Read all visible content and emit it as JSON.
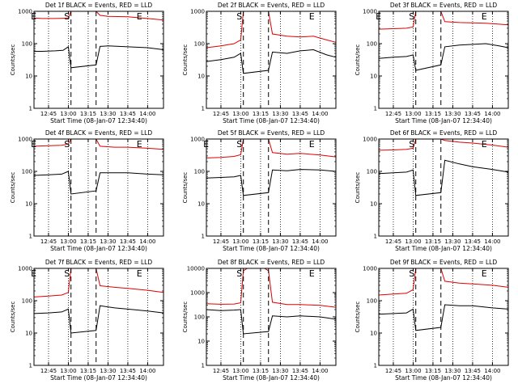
{
  "figure": {
    "xlabel": "Start Time (08-Jan-07 12:34:40)",
    "ylabel": "Counts/sec",
    "x_tick_labels": [
      "12:45",
      "13:00",
      "13:15",
      "13:30",
      "13:45",
      "14:00"
    ],
    "y_tick_labels": [
      "1",
      "10",
      "100",
      "1000"
    ],
    "y_tick_labels_det8": [
      "1",
      "10",
      "100",
      "1000",
      "10000"
    ],
    "series_colors": {
      "events": "#000000",
      "lld": "#e00000"
    },
    "markers": {
      "start": "S",
      "end": "E"
    }
  },
  "chart_data": [
    {
      "type": "line",
      "title": "Det 1f BLACK = Events, RED = LLD",
      "xlabel": "Start Time (08-Jan-07 12:34:40)",
      "ylabel": "Counts/sec",
      "y_scale": "log",
      "ylim": [
        1,
        1000
      ],
      "xlim": [
        "12:34",
        "14:12"
      ],
      "vlines_dotted": [
        "12:45",
        "13:00",
        "13:15",
        "13:30",
        "13:45",
        "14:00"
      ],
      "vlines_dashed": [
        "13:02",
        "13:21"
      ],
      "markers": [
        {
          "label": "E",
          "x": "12:35"
        },
        {
          "label": "S",
          "x": "13:02"
        },
        {
          "label": "E",
          "x": "13:55"
        }
      ],
      "series": [
        {
          "name": "Events",
          "color": "#000000",
          "x": [
            "12:34",
            "12:40",
            "12:50",
            "12:56",
            "13:00",
            "13:02",
            "13:21",
            "13:24",
            "13:30",
            "13:45",
            "14:00",
            "14:12"
          ],
          "y": [
            58,
            58,
            60,
            62,
            80,
            18,
            22,
            82,
            85,
            80,
            75,
            65
          ]
        },
        {
          "name": "LLD",
          "color": "#e00000",
          "x": [
            "12:34",
            "12:40",
            "12:50",
            "12:56",
            "13:00",
            "13:02",
            "13:05",
            "13:18",
            "13:21",
            "13:24",
            "13:30",
            "13:45",
            "14:00",
            "14:12"
          ],
          "y": [
            620,
            600,
            600,
            610,
            620,
            1000,
            1000,
            1000,
            1000,
            750,
            700,
            680,
            600,
            540
          ]
        }
      ]
    },
    {
      "type": "line",
      "title": "Det 2f BLACK = Events, RED = LLD",
      "xlabel": "Start Time (08-Jan-07 12:34:40)",
      "ylabel": "Counts/sec",
      "y_scale": "log",
      "ylim": [
        1,
        1000
      ],
      "xlim": [
        "12:34",
        "14:12"
      ],
      "vlines_dotted": [
        "12:45",
        "13:00",
        "13:15",
        "13:30",
        "13:45",
        "14:00"
      ],
      "vlines_dashed": [
        "13:02",
        "13:21"
      ],
      "markers": [
        {
          "label": "S",
          "x": "13:02"
        },
        {
          "label": "E",
          "x": "13:55"
        }
      ],
      "series": [
        {
          "name": "Events",
          "color": "#000000",
          "x": [
            "12:34",
            "12:45",
            "12:55",
            "13:00",
            "13:02",
            "13:21",
            "13:24",
            "13:35",
            "13:45",
            "13:55",
            "14:05",
            "14:12"
          ],
          "y": [
            28,
            32,
            38,
            50,
            12,
            15,
            55,
            50,
            60,
            65,
            45,
            38
          ]
        },
        {
          "name": "LLD",
          "color": "#e00000",
          "x": [
            "12:34",
            "12:45",
            "12:55",
            "13:00",
            "13:02",
            "13:05",
            "13:18",
            "13:21",
            "13:24",
            "13:35",
            "13:45",
            "13:55",
            "14:05",
            "14:12"
          ],
          "y": [
            75,
            85,
            100,
            130,
            1000,
            1000,
            1000,
            1000,
            200,
            170,
            160,
            170,
            130,
            110
          ]
        }
      ]
    },
    {
      "type": "line",
      "title": "Det 3f BLACK = Events, RED = LLD",
      "xlabel": "Start Time (08-Jan-07 12:34:40)",
      "ylabel": "Counts/sec",
      "y_scale": "log",
      "ylim": [
        1,
        1000
      ],
      "xlim": [
        "12:34",
        "14:12"
      ],
      "vlines_dotted": [
        "12:45",
        "13:00",
        "13:15",
        "13:30",
        "13:45",
        "14:00"
      ],
      "vlines_dashed": [
        "13:02",
        "13:21"
      ],
      "markers": [
        {
          "label": "E",
          "x": "12:35"
        },
        {
          "label": "S",
          "x": "13:02"
        },
        {
          "label": "E",
          "x": "13:55"
        }
      ],
      "series": [
        {
          "name": "Events",
          "color": "#000000",
          "x": [
            "12:34",
            "12:45",
            "12:55",
            "13:00",
            "13:02",
            "13:21",
            "13:24",
            "13:35",
            "13:45",
            "13:55",
            "14:05",
            "14:12"
          ],
          "y": [
            35,
            38,
            40,
            45,
            15,
            22,
            80,
            90,
            95,
            100,
            85,
            75
          ]
        },
        {
          "name": "LLD",
          "color": "#e00000",
          "x": [
            "12:34",
            "12:45",
            "12:55",
            "13:00",
            "13:02",
            "13:05",
            "13:18",
            "13:21",
            "13:24",
            "13:35",
            "13:45",
            "13:55",
            "14:05",
            "14:12"
          ],
          "y": [
            280,
            290,
            300,
            330,
            1000,
            1000,
            1000,
            1000,
            480,
            450,
            440,
            430,
            400,
            380
          ]
        }
      ]
    },
    {
      "type": "line",
      "title": "Det 4f BLACK = Events, RED = LLD",
      "xlabel": "Start Time (08-Jan-07 12:34:40)",
      "ylabel": "Counts/sec",
      "y_scale": "log",
      "ylim": [
        1,
        1000
      ],
      "xlim": [
        "12:34",
        "14:12"
      ],
      "vlines_dotted": [
        "12:45",
        "13:00",
        "13:15",
        "13:30",
        "13:45",
        "14:00"
      ],
      "vlines_dashed": [
        "13:02",
        "13:21"
      ],
      "markers": [
        {
          "label": "E",
          "x": "12:35"
        },
        {
          "label": "S",
          "x": "13:02"
        },
        {
          "label": "E",
          "x": "13:55"
        }
      ],
      "series": [
        {
          "name": "Events",
          "color": "#000000",
          "x": [
            "12:34",
            "12:45",
            "12:55",
            "13:00",
            "13:02",
            "13:21",
            "13:24",
            "13:35",
            "13:45",
            "14:00",
            "14:12"
          ],
          "y": [
            75,
            78,
            82,
            100,
            20,
            25,
            90,
            90,
            90,
            82,
            78
          ]
        },
        {
          "name": "LLD",
          "color": "#e00000",
          "x": [
            "12:34",
            "12:45",
            "12:55",
            "13:00",
            "13:02",
            "13:05",
            "13:18",
            "13:21",
            "13:24",
            "13:35",
            "13:45",
            "14:00",
            "14:12"
          ],
          "y": [
            600,
            620,
            640,
            700,
            1000,
            1000,
            1000,
            1000,
            600,
            560,
            560,
            520,
            480
          ]
        }
      ]
    },
    {
      "type": "line",
      "title": "Det 5f BLACK = Events, RED = LLD",
      "xlabel": "Start Time (08-Jan-07 12:34:40)",
      "ylabel": "Counts/sec",
      "y_scale": "log",
      "ylim": [
        1,
        1000
      ],
      "xlim": [
        "12:34",
        "14:12"
      ],
      "vlines_dotted": [
        "12:45",
        "13:00",
        "13:15",
        "13:30",
        "13:45",
        "14:00"
      ],
      "vlines_dashed": [
        "13:02",
        "13:21"
      ],
      "markers": [
        {
          "label": "E",
          "x": "12:35"
        },
        {
          "label": "S",
          "x": "13:02"
        },
        {
          "label": "E",
          "x": "13:55"
        }
      ],
      "series": [
        {
          "name": "Events",
          "color": "#000000",
          "x": [
            "12:34",
            "12:45",
            "12:55",
            "13:00",
            "13:02",
            "13:21",
            "13:24",
            "13:35",
            "13:45",
            "14:00",
            "14:12"
          ],
          "y": [
            62,
            65,
            68,
            75,
            18,
            22,
            110,
            105,
            115,
            110,
            100
          ]
        },
        {
          "name": "LLD",
          "color": "#e00000",
          "x": [
            "12:34",
            "12:45",
            "12:55",
            "13:00",
            "13:02",
            "13:05",
            "13:18",
            "13:21",
            "13:24",
            "13:35",
            "13:45",
            "14:00",
            "14:12"
          ],
          "y": [
            260,
            270,
            290,
            330,
            1000,
            1000,
            1000,
            1000,
            380,
            340,
            360,
            320,
            280
          ]
        }
      ]
    },
    {
      "type": "line",
      "title": "Det 6f BLACK = Events, RED = LLD",
      "xlabel": "Start Time (08-Jan-07 12:34:40)",
      "ylabel": "Counts/sec",
      "y_scale": "log",
      "ylim": [
        1,
        1000
      ],
      "xlim": [
        "12:34",
        "14:12"
      ],
      "vlines_dotted": [
        "12:45",
        "13:00",
        "13:15",
        "13:30",
        "13:45",
        "14:00"
      ],
      "vlines_dashed": [
        "13:02",
        "13:21"
      ],
      "markers": [
        {
          "label": "S",
          "x": "13:02"
        },
        {
          "label": "E",
          "x": "13:55"
        }
      ],
      "series": [
        {
          "name": "Events",
          "color": "#000000",
          "x": [
            "12:34",
            "12:45",
            "12:55",
            "13:00",
            "13:02",
            "13:21",
            "13:24",
            "13:35",
            "13:45",
            "14:00",
            "14:12"
          ],
          "y": [
            85,
            90,
            95,
            110,
            18,
            22,
            220,
            170,
            140,
            115,
            95
          ]
        },
        {
          "name": "LLD",
          "color": "#e00000",
          "x": [
            "12:34",
            "12:45",
            "12:55",
            "13:00",
            "13:02",
            "13:05",
            "13:18",
            "13:21",
            "13:24",
            "13:35",
            "13:45",
            "14:00",
            "14:12"
          ],
          "y": [
            450,
            460,
            480,
            520,
            1000,
            1000,
            1000,
            1000,
            900,
            800,
            750,
            650,
            560
          ]
        }
      ]
    },
    {
      "type": "line",
      "title": "Det 7f BLACK = Events, RED = LLD",
      "xlabel": "Start Time (08-Jan-07 12:34:40)",
      "ylabel": "Counts/sec",
      "y_scale": "log",
      "ylim": [
        1,
        1000
      ],
      "xlim": [
        "12:34",
        "14:12"
      ],
      "vlines_dotted": [
        "12:45",
        "13:00",
        "13:15",
        "13:30",
        "13:45",
        "14:00"
      ],
      "vlines_dashed": [
        "13:02",
        "13:21"
      ],
      "markers": [
        {
          "label": "E",
          "x": "12:35"
        },
        {
          "label": "S",
          "x": "13:02"
        },
        {
          "label": "E",
          "x": "13:55"
        }
      ],
      "series": [
        {
          "name": "Events",
          "color": "#000000",
          "x": [
            "12:34",
            "12:45",
            "12:55",
            "13:00",
            "13:02",
            "13:21",
            "13:24",
            "13:35",
            "13:45",
            "14:00",
            "14:12"
          ],
          "y": [
            40,
            42,
            45,
            55,
            10,
            12,
            70,
            60,
            55,
            48,
            42
          ]
        },
        {
          "name": "LLD",
          "color": "#e00000",
          "x": [
            "12:34",
            "12:45",
            "12:55",
            "13:00",
            "13:02",
            "13:05",
            "13:18",
            "13:21",
            "13:24",
            "13:35",
            "13:45",
            "14:00",
            "14:12"
          ],
          "y": [
            130,
            140,
            150,
            180,
            1000,
            1000,
            1000,
            1000,
            290,
            260,
            240,
            210,
            180
          ]
        }
      ]
    },
    {
      "type": "line",
      "title": "Det 8f BLACK = Events, RED = LLD",
      "xlabel": "Start Time (08-Jan-07 12:34:40)",
      "ylabel": "Counts/sec",
      "y_scale": "log",
      "ylim": [
        1,
        10000
      ],
      "xlim": [
        "12:34",
        "14:12"
      ],
      "vlines_dotted": [
        "12:45",
        "13:00",
        "13:15",
        "13:30",
        "13:45",
        "14:00"
      ],
      "vlines_dashed": [
        "13:02",
        "13:21"
      ],
      "markers": [
        {
          "label": "S",
          "x": "13:02"
        },
        {
          "label": "E",
          "x": "13:55"
        }
      ],
      "series": [
        {
          "name": "Events",
          "color": "#000000",
          "x": [
            "12:34",
            "12:45",
            "12:55",
            "13:00",
            "13:02",
            "13:21",
            "13:24",
            "13:35",
            "13:45",
            "14:00",
            "14:12"
          ],
          "y": [
            200,
            180,
            190,
            200,
            20,
            25,
            110,
            100,
            110,
            100,
            80
          ]
        },
        {
          "name": "LLD",
          "color": "#e00000",
          "x": [
            "12:34",
            "12:45",
            "12:55",
            "13:00",
            "13:02",
            "13:05",
            "13:18",
            "13:21",
            "13:24",
            "13:35",
            "13:45",
            "14:00",
            "14:12"
          ],
          "y": [
            350,
            330,
            340,
            380,
            8000,
            10000,
            10000,
            8000,
            400,
            320,
            320,
            300,
            250
          ]
        }
      ]
    },
    {
      "type": "line",
      "title": "Det 9f BLACK = Events, RED = LLD",
      "xlabel": "Start Time (08-Jan-07 12:34:40)",
      "ylabel": "Counts/sec",
      "y_scale": "log",
      "ylim": [
        1,
        1000
      ],
      "xlim": [
        "12:34",
        "14:12"
      ],
      "vlines_dotted": [
        "12:45",
        "13:00",
        "13:15",
        "13:30",
        "13:45",
        "14:00"
      ],
      "vlines_dashed": [
        "13:02",
        "13:21"
      ],
      "markers": [
        {
          "label": "S",
          "x": "13:02"
        },
        {
          "label": "E",
          "x": "13:55"
        }
      ],
      "series": [
        {
          "name": "Events",
          "color": "#000000",
          "x": [
            "12:34",
            "12:45",
            "12:55",
            "13:00",
            "13:02",
            "13:21",
            "13:24",
            "13:35",
            "13:45",
            "14:00",
            "14:12"
          ],
          "y": [
            38,
            40,
            42,
            55,
            12,
            15,
            75,
            70,
            70,
            60,
            55
          ]
        },
        {
          "name": "LLD",
          "color": "#e00000",
          "x": [
            "12:34",
            "12:45",
            "12:55",
            "13:00",
            "13:02",
            "13:05",
            "13:18",
            "13:21",
            "13:24",
            "13:35",
            "13:45",
            "14:00",
            "14:12"
          ],
          "y": [
            150,
            160,
            170,
            220,
            1000,
            1000,
            1000,
            1000,
            400,
            350,
            330,
            300,
            260
          ]
        }
      ]
    }
  ]
}
